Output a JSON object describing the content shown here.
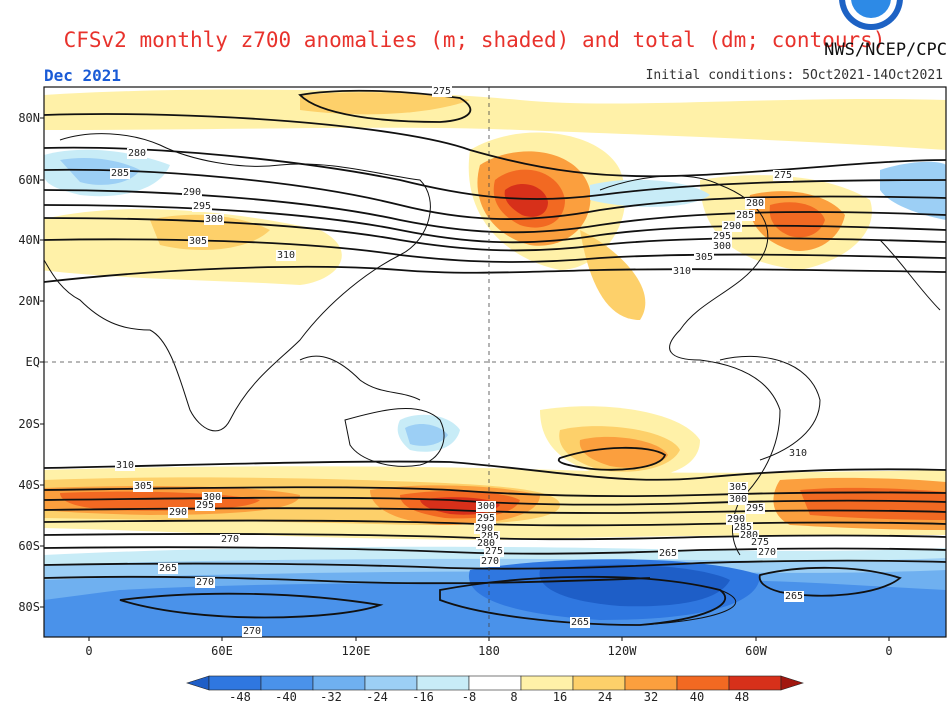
{
  "header": {
    "title": "CFSv2 monthly z700 anomalies (m; shaded) and total (dm; contours)",
    "credit": "NWS/NCEP/CPC",
    "month": "Dec 2021",
    "initial_conditions": "Initial conditions: 5Oct2021-14Oct2021"
  },
  "axes": {
    "lat_labels": [
      "80N",
      "60N",
      "40N",
      "20N",
      "EQ",
      "20S",
      "40S",
      "60S",
      "80S"
    ],
    "lon_labels": [
      "0",
      "60E",
      "120E",
      "180",
      "120W",
      "60W",
      "0"
    ]
  },
  "contours": {
    "labels": [
      "275",
      "280",
      "285",
      "290",
      "295",
      "300",
      "305",
      "310",
      "275",
      "280",
      "285",
      "290",
      "295",
      "300",
      "305",
      "310",
      "310",
      "305",
      "300",
      "295",
      "290",
      "270",
      "265",
      "270",
      "270",
      "300",
      "295",
      "290",
      "285",
      "280",
      "275",
      "270",
      "265",
      "265",
      "310",
      "305",
      "300",
      "295",
      "290",
      "285",
      "280",
      "275",
      "270",
      "265"
    ]
  },
  "colorbar": {
    "labels": [
      "-48",
      "-40",
      "-32",
      "-24",
      "-16",
      "-8",
      "8",
      "16",
      "24",
      "32",
      "40",
      "48"
    ],
    "colors": [
      "#1e5ec7",
      "#2f77e0",
      "#4a92ea",
      "#6fb0f0",
      "#9ccff5",
      "#c8ecf7",
      "#ffffff",
      "#fff1a8",
      "#fdd06a",
      "#fb9f3e",
      "#f26922",
      "#d7301a",
      "#a1170f"
    ]
  }
}
